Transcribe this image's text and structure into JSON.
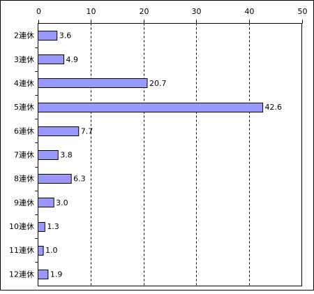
{
  "chart_data": {
    "type": "bar",
    "orientation": "horizontal",
    "categories": [
      "2連休",
      "3連休",
      "4連休",
      "5連休",
      "6連休",
      "7連休",
      "8連休",
      "9連休",
      "10連休",
      "11連休",
      "12連休"
    ],
    "values": [
      3.6,
      4.9,
      20.7,
      42.6,
      7.7,
      3.8,
      6.3,
      3.0,
      1.3,
      1.0,
      1.9
    ],
    "value_labels": [
      "3.6",
      "4.9",
      "20.7",
      "42.6",
      "7.7",
      "3.8",
      "6.3",
      "3.0",
      "1.3",
      "1.0",
      "1.9"
    ],
    "xlim": [
      0,
      50
    ],
    "x_ticks": [
      0,
      10,
      20,
      30,
      40,
      50
    ],
    "x_tick_labels": [
      "0",
      "10",
      "20",
      "30",
      "40",
      "50"
    ],
    "x_axis_position": "top",
    "grid": "vertical-dashed",
    "legend": "none",
    "bar_color": "#9999ff"
  }
}
